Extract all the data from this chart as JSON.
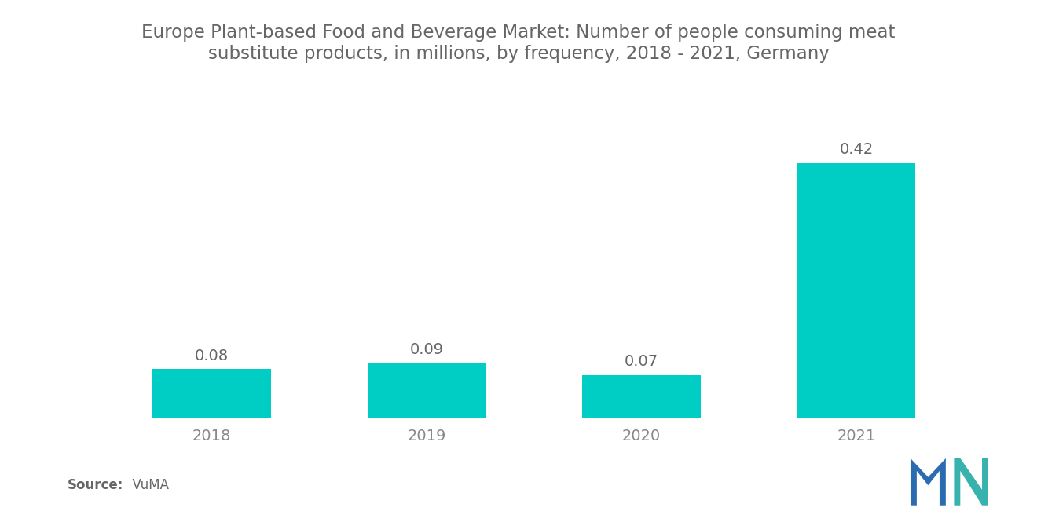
{
  "title": "Europe Plant-based Food and Beverage Market: Number of people consuming meat\nsubstitute products, in millions, by frequency, 2018 - 2021, Germany",
  "categories": [
    "2018",
    "2019",
    "2020",
    "2021"
  ],
  "values": [
    0.08,
    0.09,
    0.07,
    0.42
  ],
  "bar_color": "#00CEC4",
  "value_labels": [
    "0.08",
    "0.09",
    "0.07",
    "0.42"
  ],
  "source_label": "Source:",
  "source_value": "  VuMA",
  "title_fontsize": 16.5,
  "label_fontsize": 14,
  "tick_fontsize": 14,
  "source_fontsize": 12,
  "title_color": "#666666",
  "tick_color": "#888888",
  "label_color": "#666666",
  "source_color": "#666666",
  "background_color": "#FFFFFF",
  "ylim": [
    0,
    0.5
  ],
  "bar_width": 0.55,
  "logo_blue": "#2B6CB0",
  "logo_teal": "#38B2AC"
}
